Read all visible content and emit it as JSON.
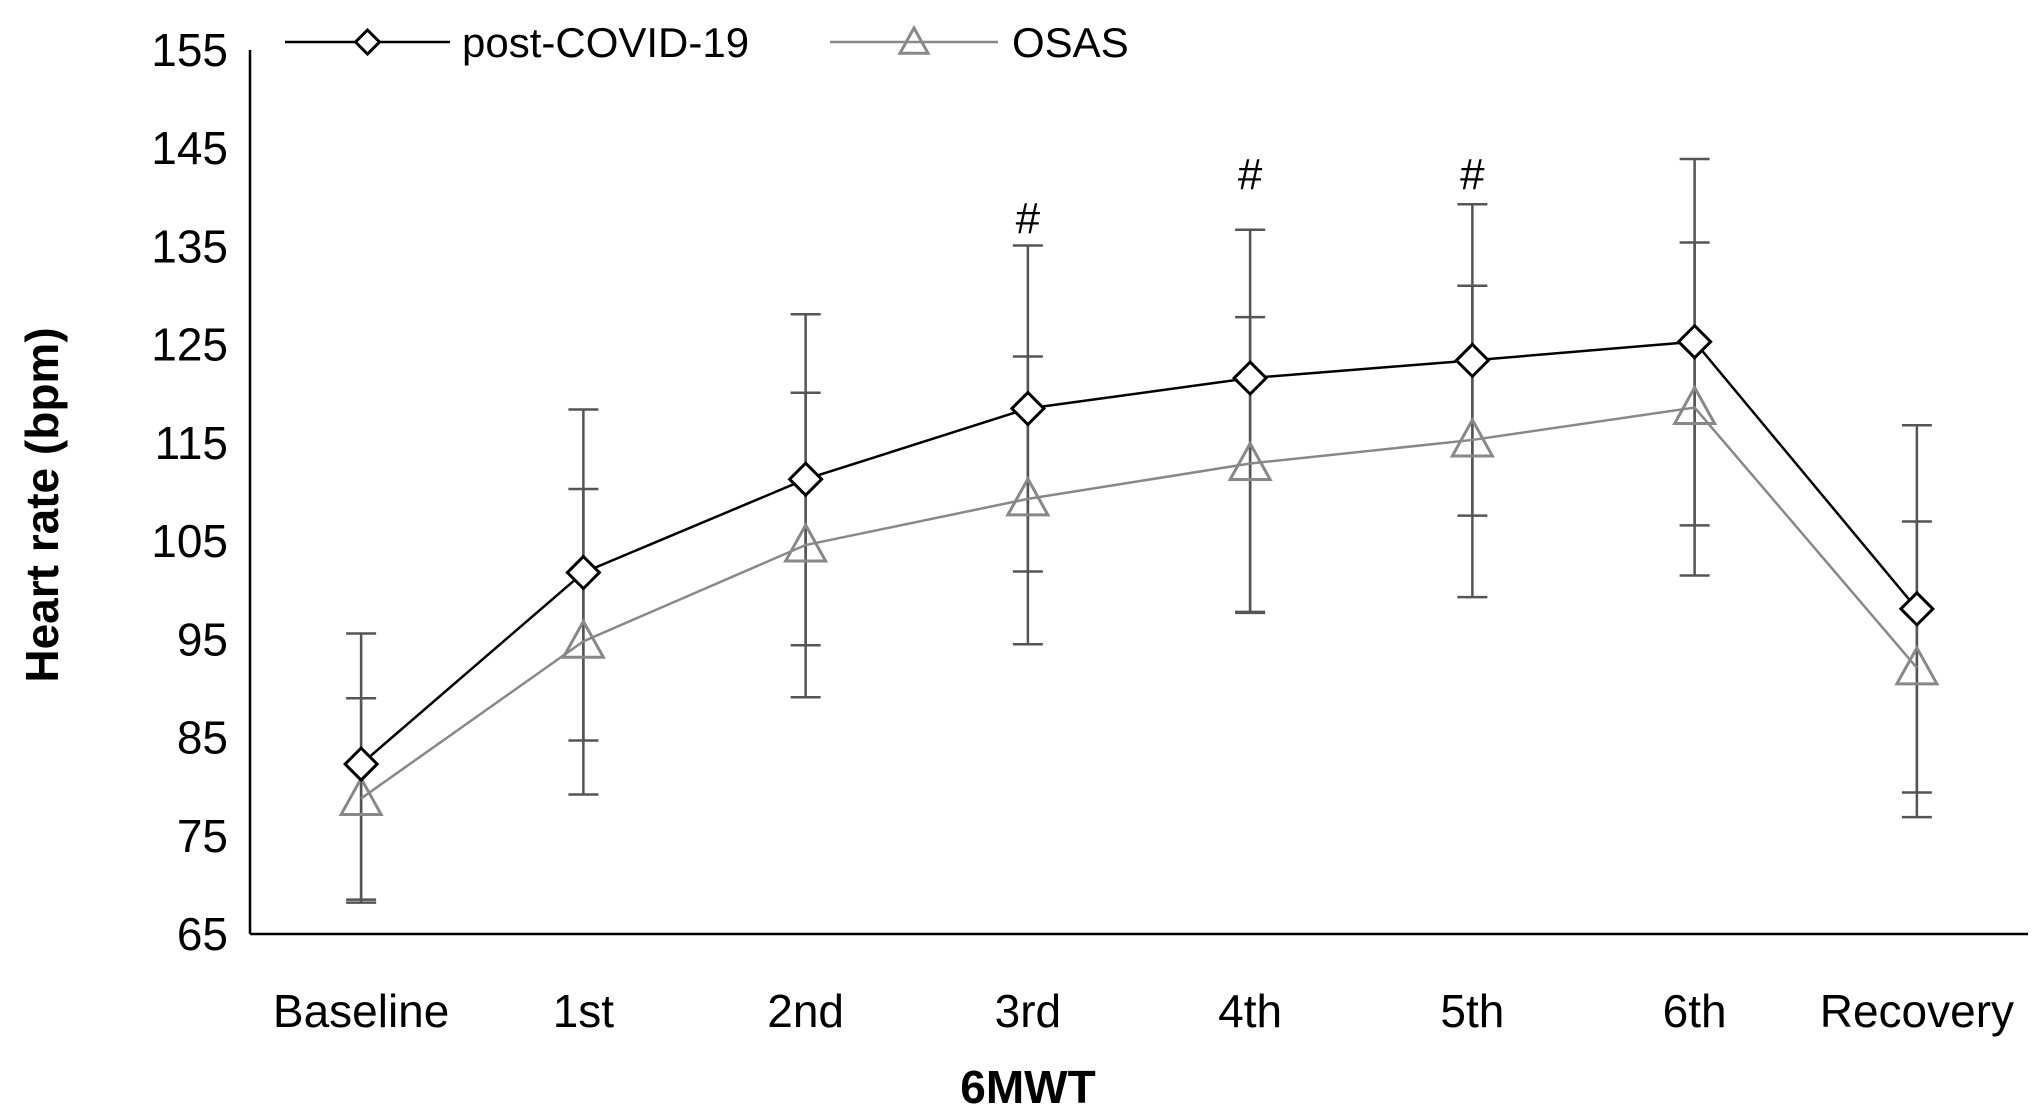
{
  "chart_data": {
    "type": "line",
    "title": "",
    "xlabel": "6MWT",
    "ylabel": "Heart rate (bpm)",
    "ylim": [
      65,
      155
    ],
    "yticks": [
      65,
      75,
      85,
      95,
      105,
      115,
      125,
      135,
      145,
      155
    ],
    "grid": false,
    "legend_position": "top-left",
    "categories": [
      "Baseline",
      "1st",
      "2nd",
      "3rd",
      "4th",
      "5th",
      "6th",
      "Recovery"
    ],
    "series": [
      {
        "name": "post-COVID-19",
        "marker": "diamond",
        "color": "#000000",
        "values": [
          82.3,
          101.8,
          111.3,
          118.5,
          121.6,
          123.4,
          125.3,
          98.1
        ],
        "error_upper": [
          89.0,
          110.3,
          120.1,
          123.8,
          127.8,
          131.0,
          135.4,
          107.0
        ],
        "error_lower": [
          68.5,
          79.2,
          89.1,
          94.5,
          97.7,
          99.3,
          101.5,
          79.4
        ]
      },
      {
        "name": "OSAS",
        "marker": "triangle",
        "color": "#888888",
        "values": [
          78.8,
          94.8,
          104.6,
          109.3,
          112.9,
          115.3,
          118.6,
          92.1
        ],
        "error_upper": [
          95.6,
          118.4,
          128.1,
          135.1,
          136.7,
          139.3,
          143.9,
          116.8
        ],
        "error_lower": [
          68.2,
          84.7,
          94.4,
          101.9,
          97.8,
          107.6,
          106.6,
          76.9
        ]
      }
    ],
    "annotations": [
      {
        "category": "3rd",
        "text": "#",
        "y": 138
      },
      {
        "category": "4th",
        "text": "#",
        "y": 142.5
      },
      {
        "category": "5th",
        "text": "#",
        "y": 142.5
      }
    ]
  }
}
